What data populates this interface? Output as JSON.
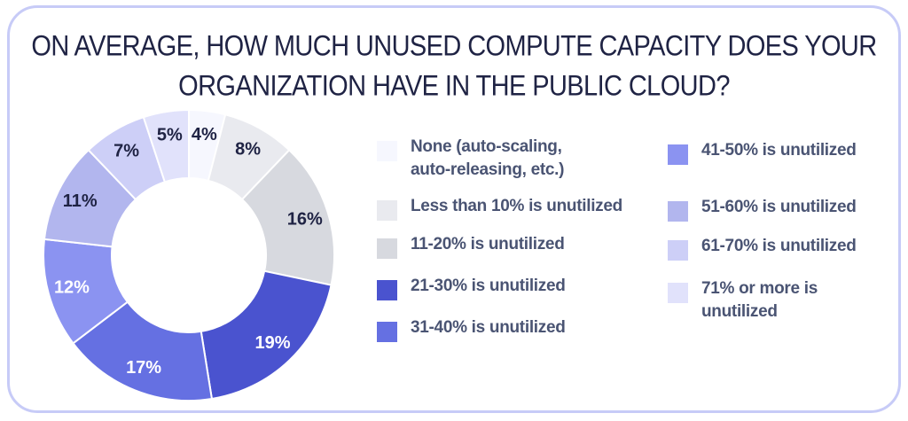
{
  "chart_data": {
    "type": "pie",
    "title": "ON AVERAGE, HOW MUCH UNUSED COMPUTE CAPACITY DOES YOUR\nORGANIZATION HAVE IN THE PUBLIC CLOUD?",
    "hole": "donut",
    "legend_position": "right",
    "slices": [
      {
        "label": "None (auto-scaling, auto-releasing, etc.)",
        "value": 4,
        "value_label": "4%",
        "color": "#f6f7fe"
      },
      {
        "label": "Less than 10% is unutilized",
        "value": 8,
        "value_label": "8%",
        "color": "#e9eaef"
      },
      {
        "label": "11-20% is unutilized",
        "value": 16,
        "value_label": "16%",
        "color": "#d7d9df"
      },
      {
        "label": "21-30% is unutilized",
        "value": 19,
        "value_label": "19%",
        "color": "#4a53cf"
      },
      {
        "label": "31-40% is unutilized",
        "value": 17,
        "value_label": "17%",
        "color": "#6570e2"
      },
      {
        "label": "41-50% is unutilized",
        "value": 12,
        "value_label": "12%",
        "color": "#8b93f1"
      },
      {
        "label": "51-60% is unutilized",
        "value": 11,
        "value_label": "11%",
        "color": "#b2b6ee"
      },
      {
        "label": "61-70% is unutilized",
        "value": 7,
        "value_label": "7%",
        "color": "#cdcff7"
      },
      {
        "label": "71% or more is unutilized",
        "value": 5,
        "value_label": "5%",
        "color": "#e1e2fb"
      }
    ]
  },
  "colors": {
    "card_border": "#c7cbf7",
    "title_text": "#1f2344",
    "legend_text": "#4a5473"
  }
}
